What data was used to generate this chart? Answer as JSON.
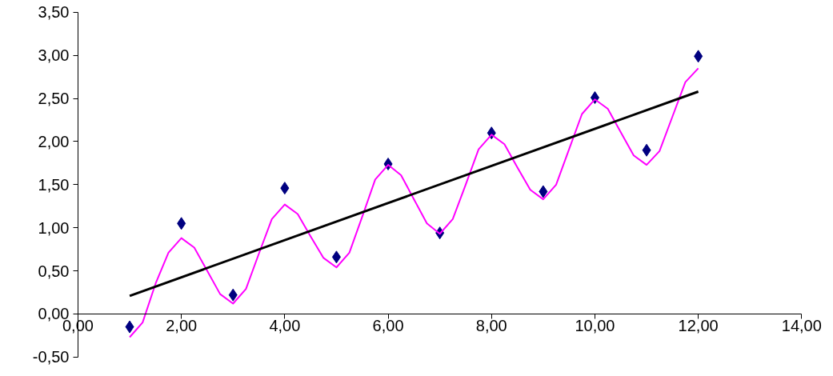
{
  "chart_data": {
    "type": "scatter",
    "xlim": [
      0,
      14
    ],
    "ylim": [
      -0.5,
      3.5
    ],
    "xticks": [
      {
        "value": 0,
        "label": "0,00"
      },
      {
        "value": 2,
        "label": "2,00"
      },
      {
        "value": 4,
        "label": "4,00"
      },
      {
        "value": 6,
        "label": "6,00"
      },
      {
        "value": 8,
        "label": "8,00"
      },
      {
        "value": 10,
        "label": "10,00"
      },
      {
        "value": 12,
        "label": "12,00"
      },
      {
        "value": 14,
        "label": "14,00"
      }
    ],
    "yticks": [
      {
        "value": -0.5,
        "label": "-0,50"
      },
      {
        "value": 0,
        "label": "0,00"
      },
      {
        "value": 0.5,
        "label": "0,50"
      },
      {
        "value": 1,
        "label": "1,00"
      },
      {
        "value": 1.5,
        "label": "1,50"
      },
      {
        "value": 2,
        "label": "2,00"
      },
      {
        "value": 2.5,
        "label": "2,50"
      },
      {
        "value": 3,
        "label": "3,00"
      },
      {
        "value": 3.5,
        "label": "3,50"
      }
    ],
    "grid": false,
    "series": [
      {
        "marker": "diamond",
        "color": "#000080",
        "x": [
          1,
          2,
          3,
          4,
          5,
          6,
          7,
          8,
          9,
          10,
          11,
          12
        ],
        "values": [
          -0.15,
          1.05,
          0.22,
          1.46,
          0.66,
          1.74,
          0.94,
          2.1,
          1.42,
          2.51,
          1.9,
          2.99
        ]
      },
      {
        "type": "line",
        "marker": "none",
        "color": "#ff00ff",
        "x": [
          1,
          1.25,
          1.5,
          1.75,
          2,
          2.25,
          2.5,
          2.75,
          3,
          3.25,
          3.5,
          3.75,
          4,
          4.25,
          4.5,
          4.75,
          5,
          5.25,
          5.5,
          5.75,
          6,
          6.25,
          6.5,
          6.75,
          7,
          7.25,
          7.5,
          7.75,
          8,
          8.25,
          8.5,
          8.75,
          9,
          9.25,
          9.5,
          9.75,
          10,
          10.25,
          10.5,
          10.75,
          11,
          11.25,
          11.5,
          11.75,
          12
        ],
        "values": [
          -0.27,
          -0.1,
          0.35,
          0.71,
          0.88,
          0.77,
          0.5,
          0.23,
          0.12,
          0.29,
          0.7,
          1.1,
          1.27,
          1.16,
          0.9,
          0.65,
          0.54,
          0.71,
          1.13,
          1.56,
          1.73,
          1.61,
          1.33,
          1.05,
          0.93,
          1.1,
          1.5,
          1.91,
          2.08,
          1.97,
          1.7,
          1.44,
          1.33,
          1.5,
          1.91,
          2.32,
          2.49,
          2.38,
          2.11,
          1.84,
          1.73,
          1.89,
          2.29,
          2.69,
          2.85
        ]
      },
      {
        "type": "line",
        "marker": "none",
        "color": "#000000",
        "x": [
          1,
          12
        ],
        "values": [
          0.21,
          2.58
        ]
      }
    ]
  }
}
